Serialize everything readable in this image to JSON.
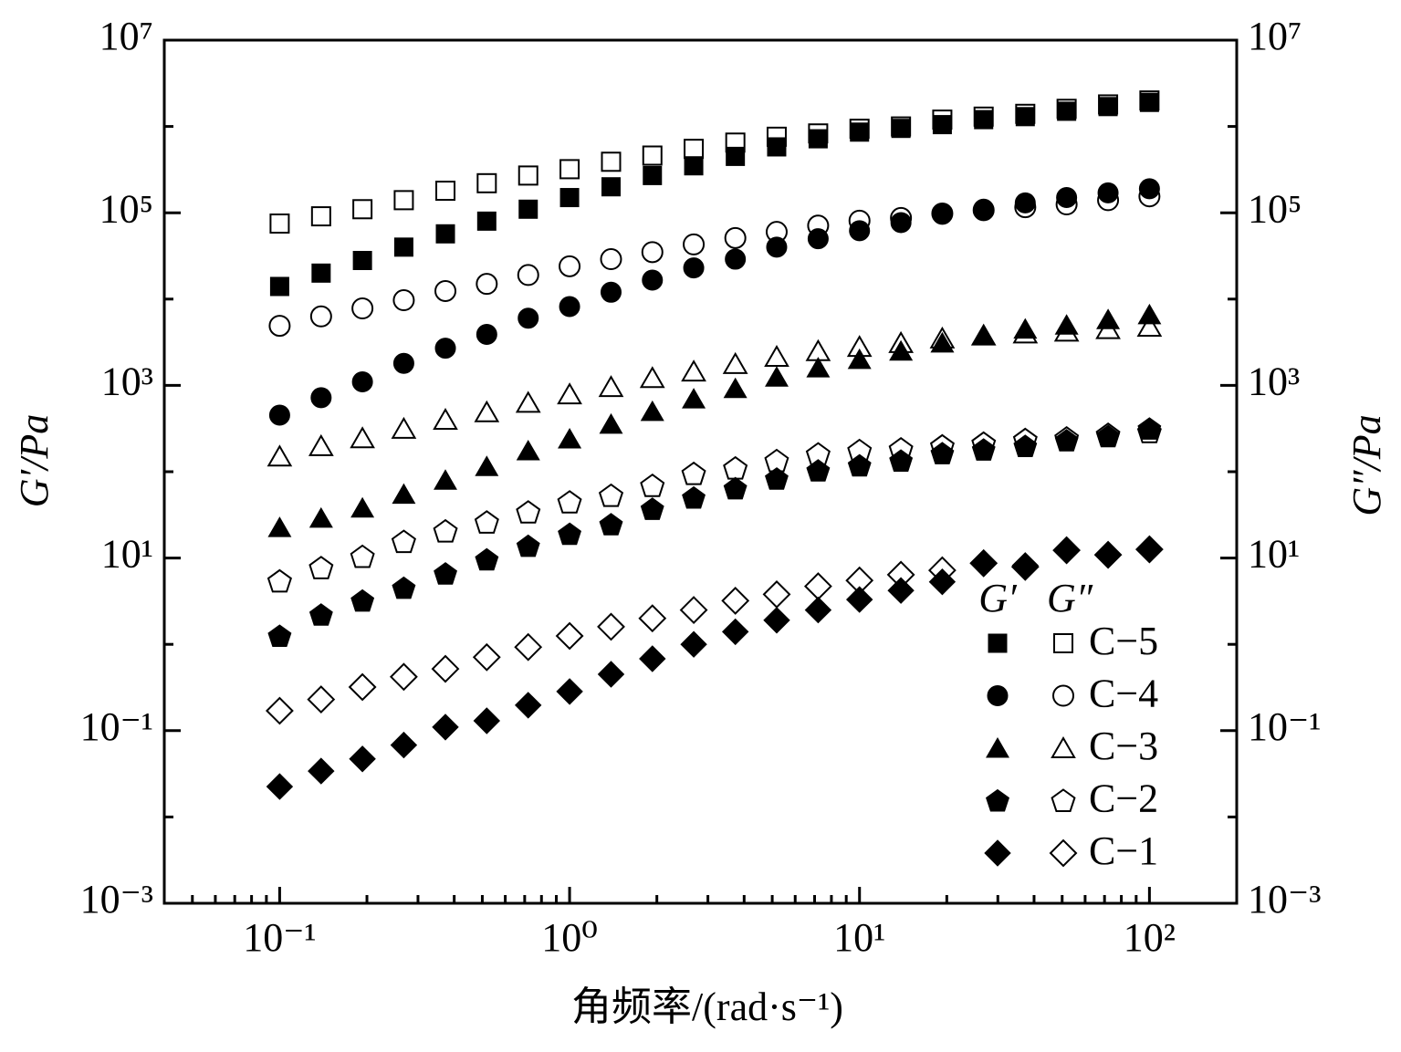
{
  "chart_data": {
    "type": "scatter",
    "x_label": "角频率/(rad·s⁻¹)",
    "y_label": "G′/Pa",
    "y2_label": "G″/Pa",
    "log_x": true,
    "log_y": true,
    "xlim": [
      0.04,
      200
    ],
    "xticks": [
      {
        "value": 0.1,
        "label": "10⁻¹"
      },
      {
        "value": 1,
        "label": "10⁰"
      },
      {
        "value": 10,
        "label": "10¹"
      },
      {
        "value": 100,
        "label": "10²"
      }
    ],
    "xminorticks": [
      0.05,
      0.06,
      0.07,
      0.08,
      0.09,
      0.2,
      0.3,
      0.4,
      0.5,
      0.6,
      0.7,
      0.8,
      0.9,
      2,
      3,
      4,
      5,
      6,
      7,
      8,
      9,
      20,
      30,
      40,
      50,
      60,
      70,
      80,
      90,
      200
    ],
    "ylim": [
      0.001,
      10000000
    ],
    "yticks": [
      {
        "value": 0.001,
        "label": "10⁻³"
      },
      {
        "value": 0.1,
        "label": "10⁻¹"
      },
      {
        "value": 10,
        "label": "10¹"
      },
      {
        "value": 1000,
        "label": "10³"
      },
      {
        "value": 100000,
        "label": "10⁵"
      },
      {
        "value": 10000000,
        "label": "10⁷"
      }
    ],
    "yminorticks": [
      0.01,
      1,
      100,
      10000,
      1000000
    ],
    "y2lim": [
      0.001,
      10000000
    ],
    "y2ticks": [
      {
        "value": 0.001,
        "label": "10⁻³"
      },
      {
        "value": 0.1,
        "label": "10⁻¹"
      },
      {
        "value": 10,
        "label": "10¹"
      },
      {
        "value": 1000,
        "label": "10³"
      },
      {
        "value": 100000,
        "label": "10⁵"
      },
      {
        "value": 10000000,
        "label": "10⁷"
      }
    ],
    "legend_columns": [
      "G′",
      "G″"
    ],
    "legend": "lower right",
    "x": [
      0.1,
      0.139,
      0.193,
      0.268,
      0.373,
      0.518,
      0.72,
      1,
      1.39,
      1.93,
      2.68,
      3.73,
      5.18,
      7.2,
      10,
      13.9,
      19.3,
      26.8,
      37.3,
      51.8,
      72,
      100
    ],
    "series": [
      {
        "name": "C−5",
        "marker": "square",
        "color": "#000000",
        "values": [
          14000,
          20000,
          28000,
          40000,
          57000,
          80000,
          110000,
          150000,
          200000,
          270000,
          350000,
          450000,
          580000,
          720000,
          860000,
          950000,
          1050000,
          1200000,
          1300000,
          1500000,
          1700000,
          1900000
        ],
        "loss_values": [
          75000,
          91000,
          110000,
          140000,
          180000,
          220000,
          270000,
          320000,
          390000,
          460000,
          550000,
          650000,
          760000,
          830000,
          940000,
          1000000,
          1200000,
          1300000,
          1400000,
          1600000,
          1800000,
          2000000
        ]
      },
      {
        "name": "C−4",
        "marker": "circle",
        "color": "#000000",
        "values": [
          452,
          720,
          1100,
          1800,
          2700,
          3900,
          6000,
          8200,
          12000,
          16600,
          23000,
          29000,
          40000,
          50000,
          62000,
          77000,
          96000,
          110000,
          130000,
          150000,
          170000,
          190000
        ],
        "loss_values": [
          4900,
          6300,
          7800,
          9700,
          12400,
          15000,
          19000,
          24000,
          29000,
          35000,
          43000,
          51000,
          60000,
          71000,
          81000,
          87000,
          98000,
          107000,
          116000,
          125000,
          140000,
          155000
        ]
      },
      {
        "name": "C−3",
        "marker": "triangle",
        "color": "#000000",
        "values": [
          22.6,
          29,
          38,
          55,
          80,
          115,
          175,
          240,
          355,
          500,
          700,
          920,
          1250,
          1600,
          2000,
          2500,
          3100,
          3800,
          4500,
          5000,
          5800,
          6600
        ],
        "loss_values": [
          150,
          198,
          245,
          315,
          400,
          490,
          630,
          790,
          960,
          1220,
          1450,
          1770,
          2150,
          2500,
          2800,
          3100,
          3500,
          3800,
          4000,
          4200,
          4500,
          4800
        ]
      },
      {
        "name": "C−2",
        "marker": "pentagon",
        "color": "#000000",
        "values": [
          1.25,
          2.2,
          3.2,
          4.5,
          6.6,
          9.6,
          13.8,
          19,
          24.5,
          37,
          50,
          64,
          83,
          103,
          118,
          134,
          163,
          180,
          198,
          230,
          257,
          315
        ],
        "loss_values": [
          5.4,
          7.7,
          10.4,
          15.5,
          20.5,
          26,
          34,
          44.5,
          53,
          69,
          95,
          110,
          134,
          160,
          175,
          183,
          198,
          213,
          235,
          245,
          270,
          290
        ]
      },
      {
        "name": "C−1",
        "marker": "diamond",
        "color": "#000000",
        "values": [
          0.0225,
          0.034,
          0.047,
          0.068,
          0.11,
          0.13,
          0.197,
          0.284,
          0.45,
          0.68,
          1.0,
          1.4,
          1.9,
          2.5,
          3.3,
          4.2,
          5.3,
          8.6,
          8.2,
          12.3,
          10.9,
          12.6
        ],
        "loss_values": [
          0.17,
          0.23,
          0.32,
          0.42,
          0.52,
          0.71,
          0.93,
          1.25,
          1.6,
          2.0,
          2.5,
          3.2,
          3.8,
          4.7,
          5.5,
          6.4,
          7.2,
          8.7,
          7.9,
          12.3,
          10.9,
          12.6
        ]
      }
    ]
  }
}
